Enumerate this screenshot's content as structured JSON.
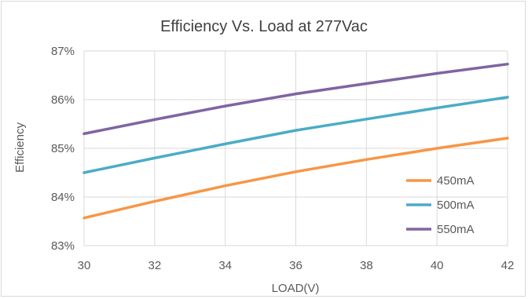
{
  "chart_data": {
    "type": "line",
    "title": "Efficiency Vs. Load at 277Vac",
    "xlabel": "LOAD(V)",
    "ylabel": "Efficiency",
    "xlim": [
      30,
      42
    ],
    "ylim": [
      83,
      87
    ],
    "x_ticks": [
      "30",
      "32",
      "34",
      "36",
      "38",
      "40",
      "42"
    ],
    "y_ticks": [
      "83%",
      "84%",
      "85%",
      "86%",
      "87%"
    ],
    "grid": true,
    "legend_position": "bottom-right",
    "x": [
      30,
      32,
      34,
      36,
      38,
      40,
      42
    ],
    "series": [
      {
        "name": "450mA",
        "color": "#f79646",
        "values": [
          83.57,
          83.91,
          84.23,
          84.52,
          84.77,
          85.0,
          85.21
        ]
      },
      {
        "name": "500mA",
        "color": "#4bacc6",
        "values": [
          84.5,
          84.8,
          85.09,
          85.37,
          85.6,
          85.83,
          86.05
        ]
      },
      {
        "name": "550mA",
        "color": "#8064a2",
        "values": [
          85.3,
          85.59,
          85.87,
          86.12,
          86.33,
          86.54,
          86.73
        ]
      }
    ]
  }
}
